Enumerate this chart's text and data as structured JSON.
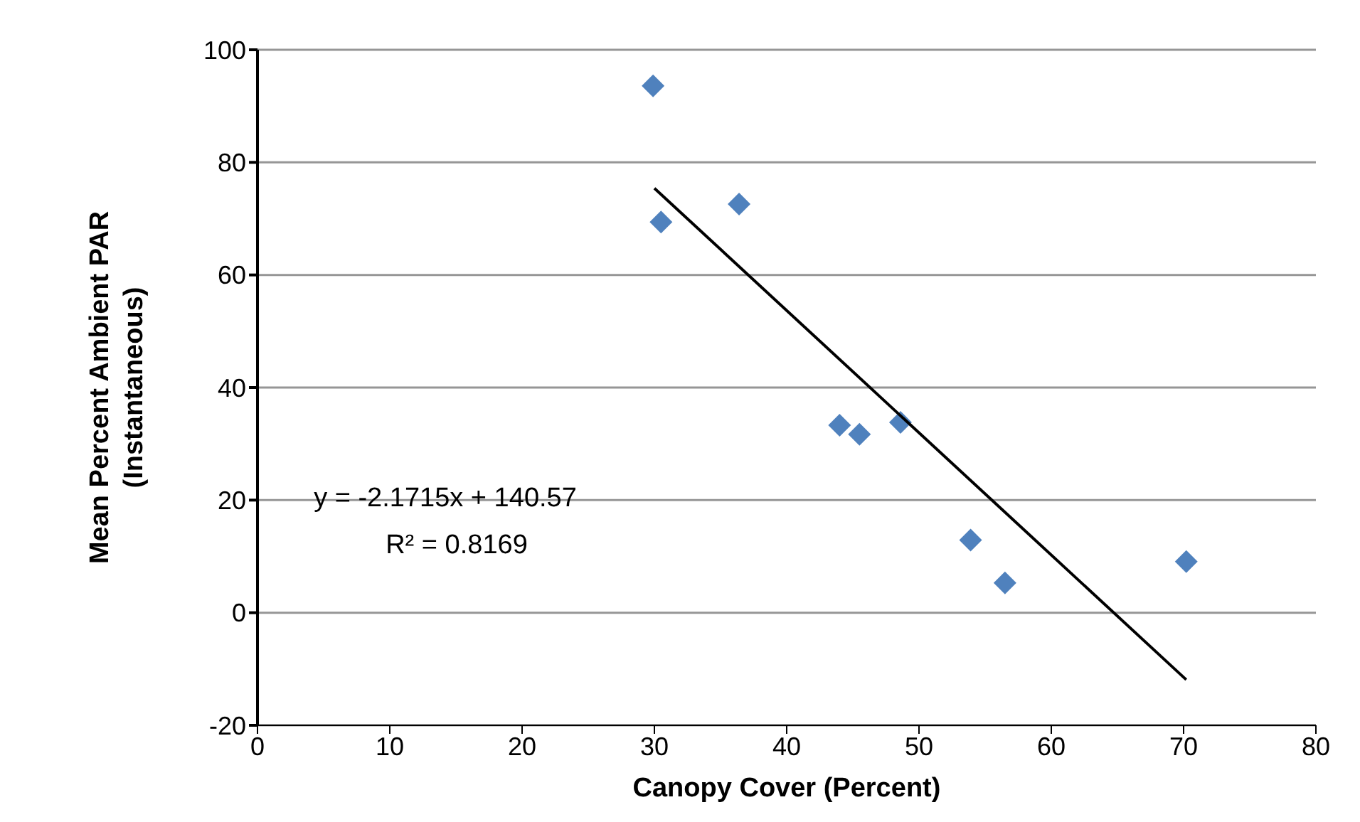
{
  "chart_data": {
    "type": "scatter",
    "xlabel": "Canopy Cover (Percent)",
    "ylabel": "Mean Percent Ambient PAR (Instantaneous)",
    "xlim": [
      0,
      80
    ],
    "xticks": [
      0,
      10,
      20,
      30,
      40,
      50,
      60,
      70,
      80
    ],
    "ylim": [
      -20,
      100
    ],
    "yticks": [
      -20,
      0,
      20,
      40,
      60,
      80,
      100
    ],
    "grid": "y",
    "series": [
      {
        "color": "#4f81bd",
        "marker": "diamond",
        "x": [
          29.9,
          30.5,
          36.4,
          44.0,
          45.5,
          48.6,
          53.9,
          56.5,
          70.2
        ],
        "values": [
          93.6,
          69.4,
          72.6,
          33.3,
          31.7,
          33.8,
          12.9,
          5.3,
          9.1
        ]
      },
      {
        "type": "line",
        "color": "#000000",
        "marker": "none",
        "x": [
          30,
          70.2
        ],
        "values": [
          75.4,
          -11.9
        ]
      }
    ],
    "annotations": [
      "y = -2.1715x + 140.57",
      "R² = 0.8169"
    ]
  }
}
